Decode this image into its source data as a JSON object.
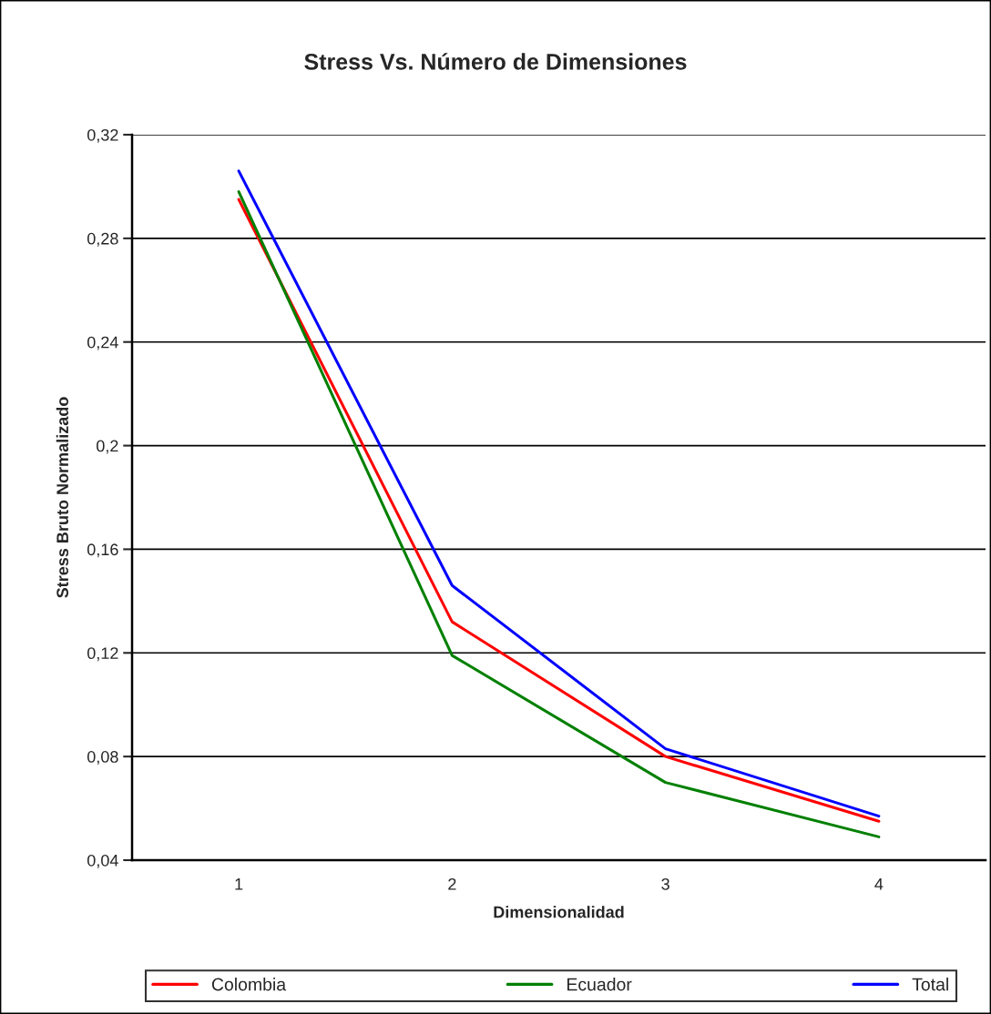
{
  "chart_data": {
    "type": "line",
    "title": "Stress Vs. Número de Dimensiones",
    "xlabel": "Dimensionalidad",
    "ylabel": "Stress Bruto Normalizado",
    "categories": [
      "1",
      "2",
      "3",
      "4"
    ],
    "series": [
      {
        "name": "Colombia",
        "color": "#ff0000",
        "values": [
          0.295,
          0.132,
          0.08,
          0.055
        ]
      },
      {
        "name": "Ecuador",
        "color": "#008000",
        "values": [
          0.298,
          0.119,
          0.07,
          0.049
        ]
      },
      {
        "name": "Total",
        "color": "#0000ff",
        "values": [
          0.306,
          0.146,
          0.083,
          0.057
        ]
      }
    ],
    "ylim": [
      0.04,
      0.32
    ],
    "yticks": [
      {
        "value": 0.04,
        "label": "0,04"
      },
      {
        "value": 0.08,
        "label": "0,08"
      },
      {
        "value": 0.12,
        "label": "0,12"
      },
      {
        "value": 0.16,
        "label": "0,16"
      },
      {
        "value": 0.2,
        "label": "0,2"
      },
      {
        "value": 0.24,
        "label": "0,24"
      },
      {
        "value": 0.28,
        "label": "0,28"
      },
      {
        "value": 0.32,
        "label": "0,32"
      }
    ],
    "grid": "y",
    "legend": "bottom",
    "marker": "none",
    "line_style": "solid"
  }
}
